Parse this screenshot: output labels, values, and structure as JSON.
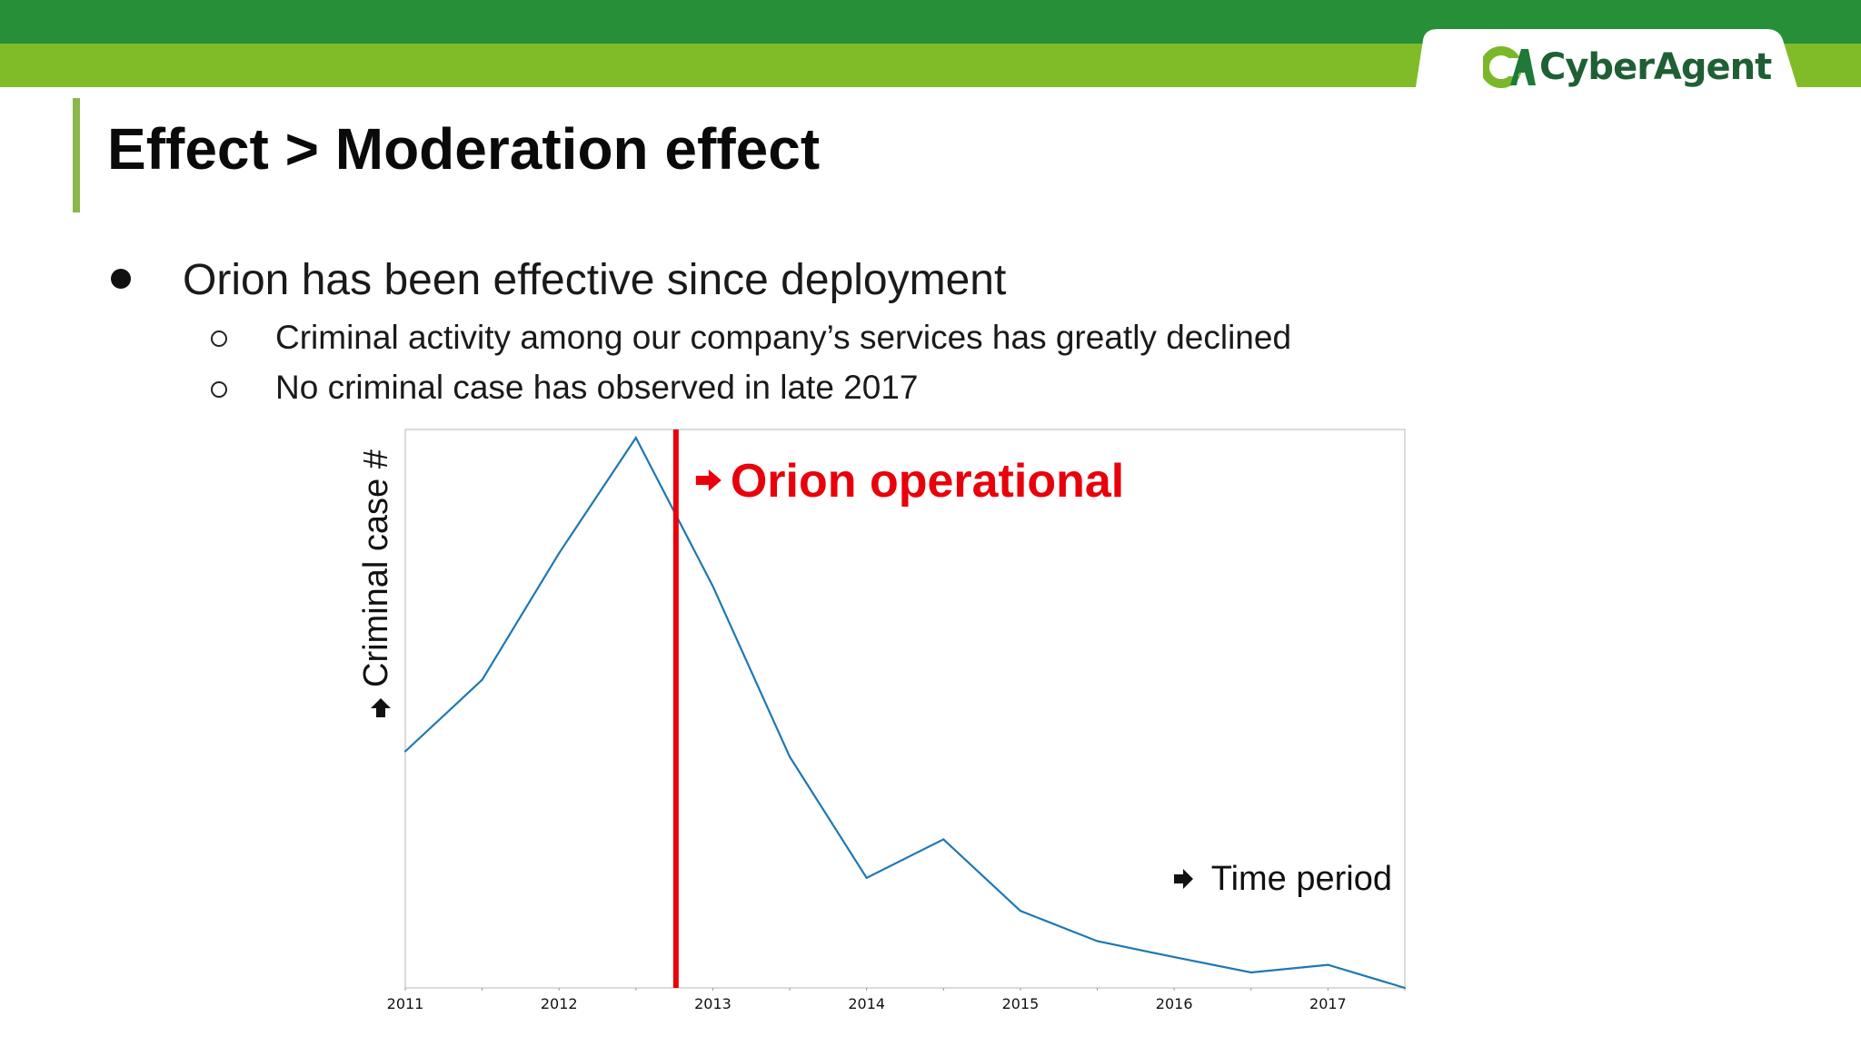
{
  "header": {
    "logo_text": "CyberAgent",
    "colors": {
      "band_dark": "#268f38",
      "band_light": "#80bc28",
      "accent_bar": "#8bb74a"
    }
  },
  "slide": {
    "title": "Effect > Moderation effect",
    "bullet": "Orion has been effective since deployment",
    "sub_bullets": [
      "Criminal activity among our company’s services has greatly declined",
      "No criminal case has observed in late 2017"
    ]
  },
  "chart_data": {
    "type": "line",
    "title": "",
    "xlabel": "Time period",
    "ylabel": "Criminal case #",
    "x": [
      2011.0,
      2011.5,
      2012.0,
      2012.5,
      2013.0,
      2013.5,
      2014.0,
      2014.5,
      2015.0,
      2015.5,
      2016.0,
      2016.5,
      2017.0,
      2017.5
    ],
    "y": [
      43,
      56,
      79,
      100,
      73,
      42,
      20,
      27,
      14,
      8.5,
      5.6,
      2.8,
      4.2,
      0
    ],
    "xlim": [
      2011,
      2017.5
    ],
    "ylim": [
      0,
      101.5
    ],
    "x_ticks": [
      "2011",
      "2012",
      "2013",
      "2014",
      "2015",
      "2016",
      "2017"
    ],
    "y_ticks_shown": false,
    "line_color": "#1f77b4",
    "marker": {
      "x": 2012.76,
      "label": "Orion operational",
      "color": "#e8000b"
    },
    "grid": false,
    "legend": "none"
  }
}
